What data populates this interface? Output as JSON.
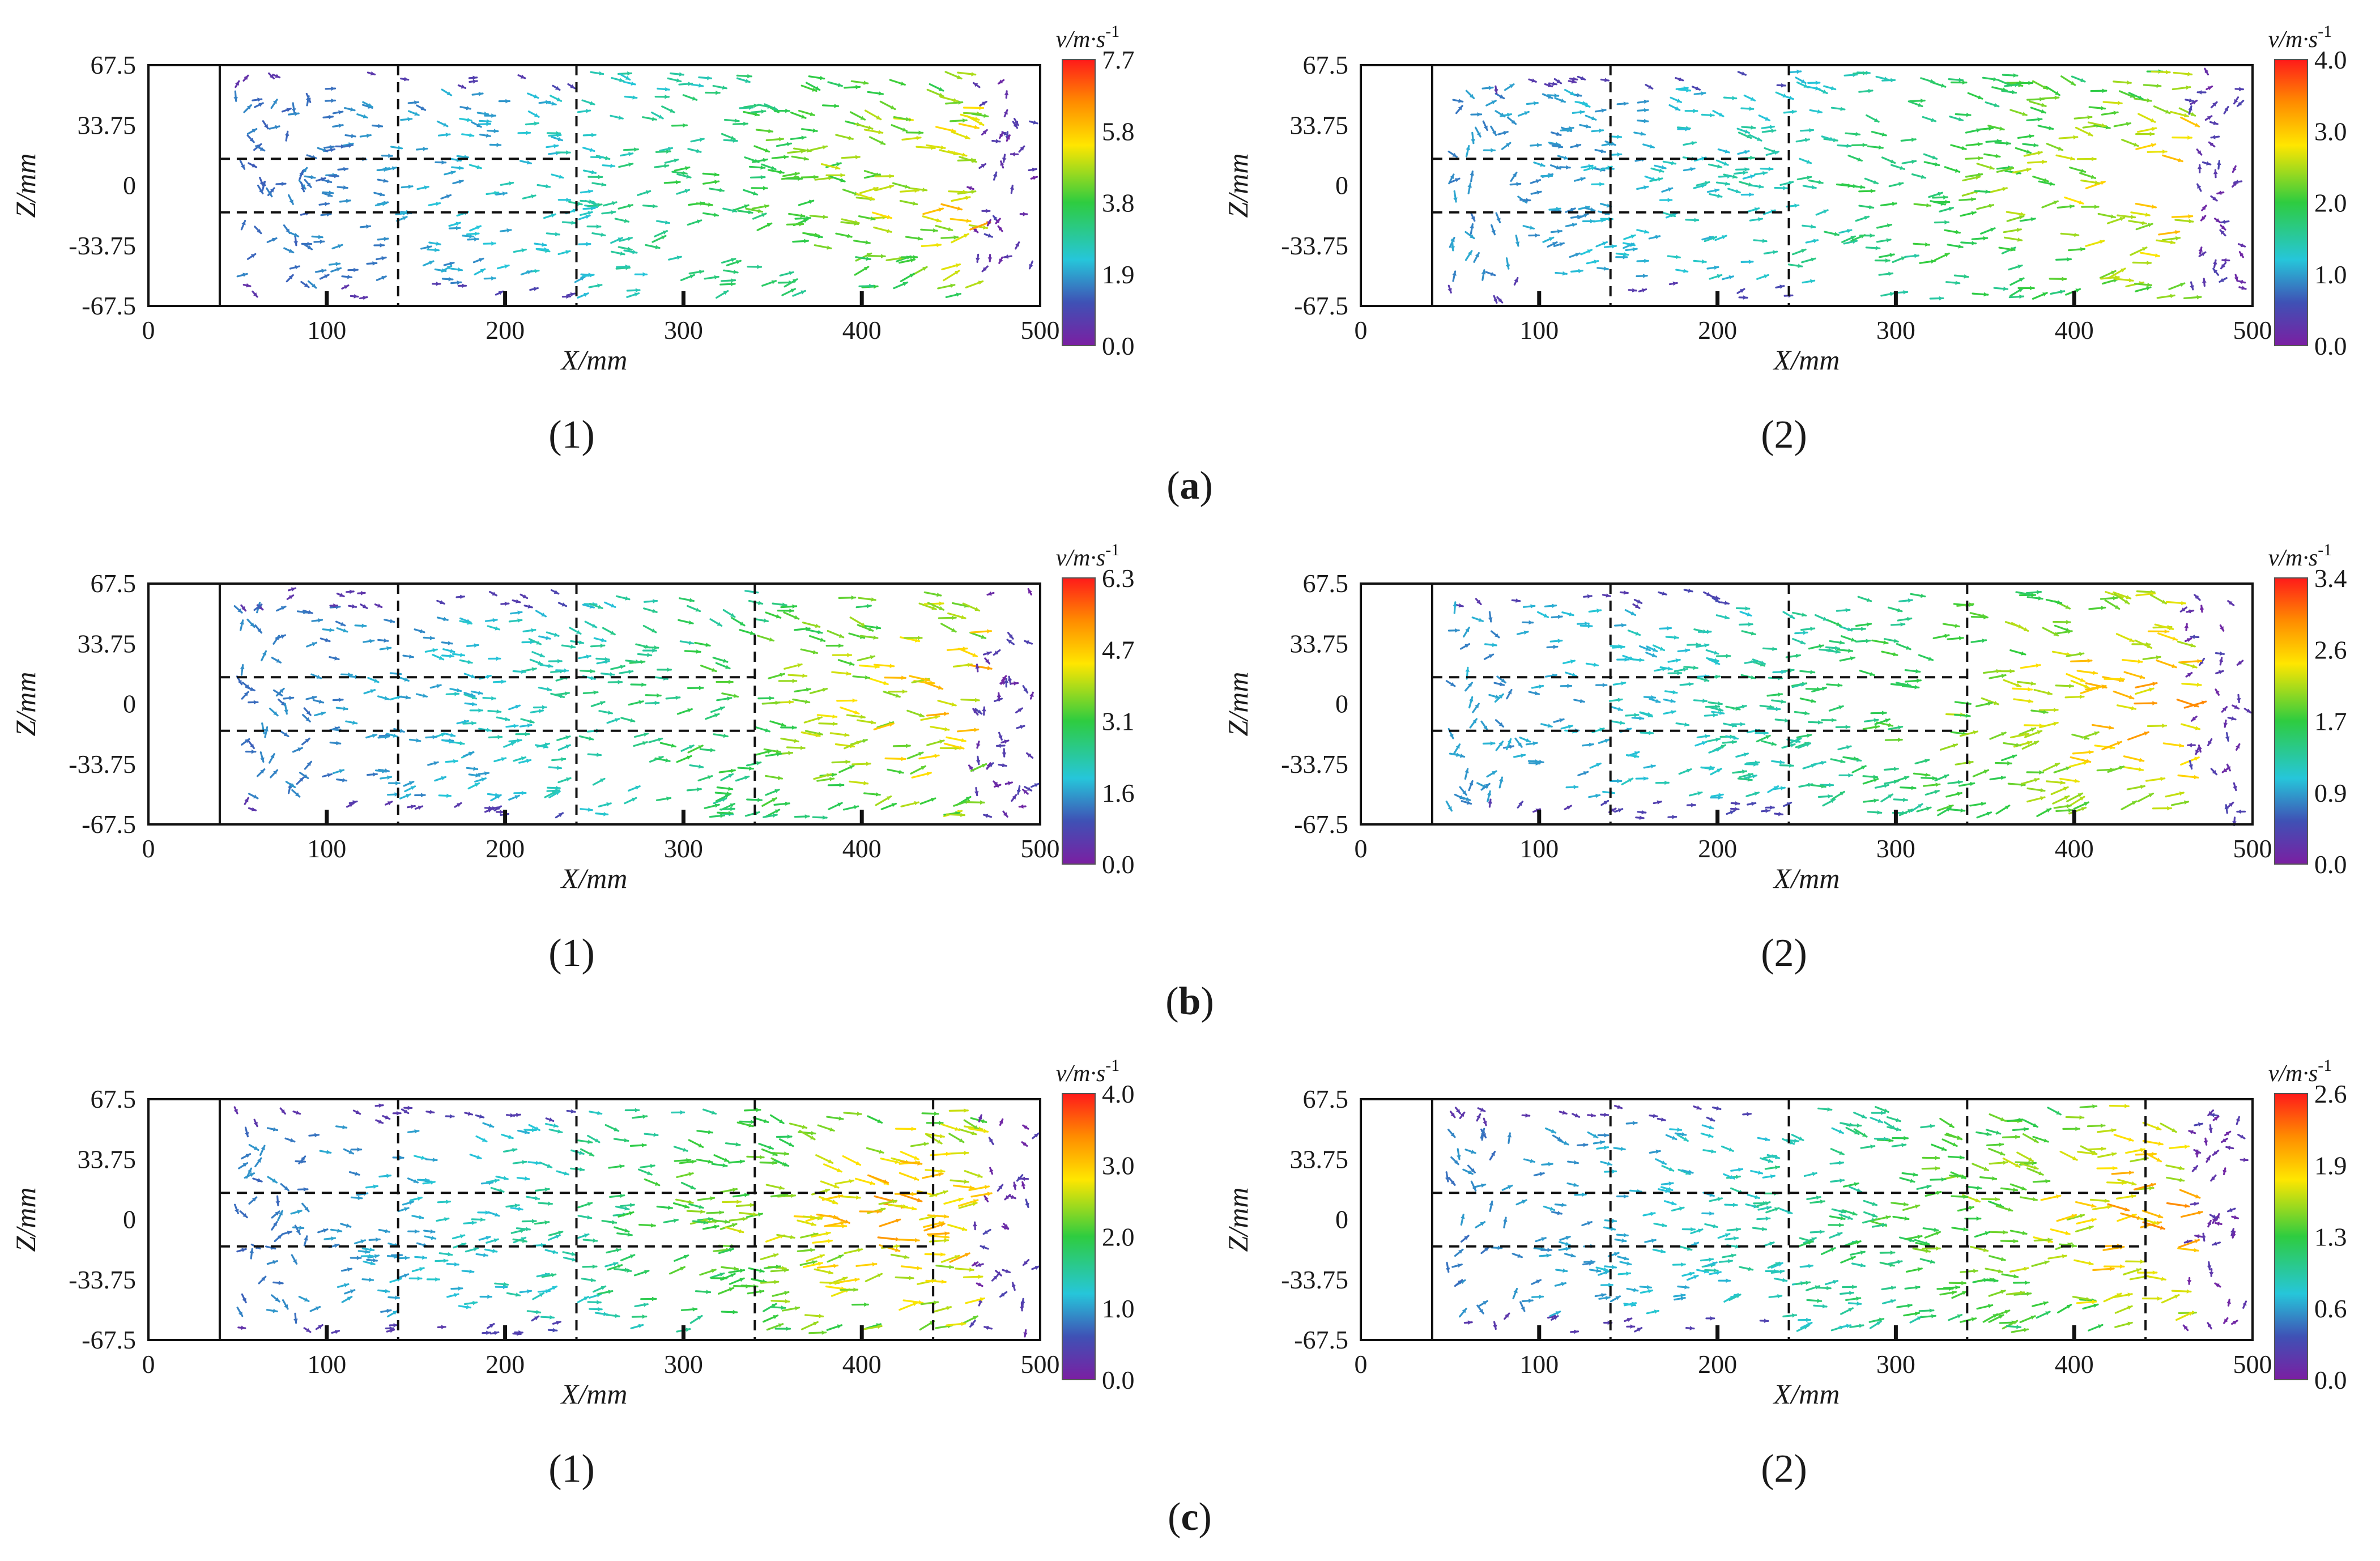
{
  "figure": {
    "groups": [
      {
        "id": "a",
        "label": "a",
        "panels": [
          {
            "id": "a1",
            "tag": "(1)",
            "xlabel": "X/mm",
            "ylabel": "Z/mm",
            "xticks": [
              "0",
              "100",
              "200",
              "300",
              "400",
              "500"
            ],
            "yticks": [
              "67.5",
              "33.75",
              "0",
              "-33.75",
              "-67.5"
            ],
            "cb_title": "v/m·s",
            "cb_sup": "-1",
            "cb_ticks": [
              "7.7",
              "5.8",
              "3.8",
              "1.9",
              "0.0"
            ],
            "vmax": 7.7,
            "vlines": [
              140,
              240
            ],
            "hsplit_to": 240,
            "flow": {
              "peak_x": 460,
              "inlet_v": 1.6
            }
          },
          {
            "id": "a2",
            "tag": "(2)",
            "xlabel": "X/mm",
            "ylabel": "Z/mm",
            "xticks": [
              "0",
              "100",
              "200",
              "300",
              "400",
              "500"
            ],
            "yticks": [
              "67.5",
              "33.75",
              "0",
              "-33.75",
              "-67.5"
            ],
            "cb_title": "v/m·s",
            "cb_sup": "-1",
            "cb_ticks": [
              "4.0",
              "3.0",
              "2.0",
              "1.0",
              "0.0"
            ],
            "vmax": 4.0,
            "vlines": [
              140,
              240
            ],
            "hsplit_to": 240,
            "flow": {
              "peak_x": 460,
              "inlet_v": 1.0
            }
          }
        ]
      },
      {
        "id": "b",
        "label": "b",
        "panels": [
          {
            "id": "b1",
            "tag": "(1)",
            "xlabel": "X/mm",
            "ylabel": "Z/mm",
            "xticks": [
              "0",
              "100",
              "200",
              "300",
              "400",
              "500"
            ],
            "yticks": [
              "67.5",
              "33.75",
              "0",
              "-33.75",
              "-67.5"
            ],
            "cb_title": "v/m·s",
            "cb_sup": "-1",
            "cb_ticks": [
              "6.3",
              "4.7",
              "3.1",
              "1.6",
              "0.0"
            ],
            "vmax": 6.3,
            "vlines": [
              140,
              240,
              340
            ],
            "hsplit_to": 340,
            "flow": {
              "peak_x": 440,
              "inlet_v": 1.4
            }
          },
          {
            "id": "b2",
            "tag": "(2)",
            "xlabel": "X/mm",
            "ylabel": "Z/mm",
            "xticks": [
              "0",
              "100",
              "200",
              "300",
              "400",
              "500"
            ],
            "yticks": [
              "67.5",
              "33.75",
              "0",
              "-33.75",
              "-67.5"
            ],
            "cb_title": "v/m·s",
            "cb_sup": "-1",
            "cb_ticks": [
              "3.4",
              "2.6",
              "1.7",
              "0.9",
              "0.0"
            ],
            "vmax": 3.4,
            "vlines": [
              140,
              240,
              340
            ],
            "hsplit_to": 340,
            "flow": {
              "peak_x": 420,
              "inlet_v": 0.9
            }
          }
        ]
      },
      {
        "id": "c",
        "label": "c",
        "panels": [
          {
            "id": "c1",
            "tag": "(1)",
            "xlabel": "X/mm",
            "ylabel": "Z/mm",
            "xticks": [
              "0",
              "100",
              "200",
              "300",
              "400",
              "500"
            ],
            "yticks": [
              "67.5",
              "33.75",
              "0",
              "-33.75",
              "-67.5"
            ],
            "cb_title": "v/m·s",
            "cb_sup": "-1",
            "cb_ticks": [
              "4.0",
              "3.0",
              "2.0",
              "1.0",
              "0.0"
            ],
            "vmax": 4.0,
            "vlines": [
              140,
              240,
              340,
              440
            ],
            "hsplit_to": 440,
            "flow": {
              "peak_x": 400,
              "inlet_v": 0.9
            }
          },
          {
            "id": "c2",
            "tag": "(2)",
            "xlabel": "X/mm",
            "ylabel": "Z/mm",
            "xticks": [
              "0",
              "100",
              "200",
              "300",
              "400",
              "500"
            ],
            "yticks": [
              "67.5",
              "33.75",
              "0",
              "-33.75",
              "-67.5"
            ],
            "cb_title": "v/m·s",
            "cb_sup": "-1",
            "cb_ticks": [
              "2.6",
              "1.9",
              "1.3",
              "0.6",
              "0.0"
            ],
            "vmax": 2.6,
            "vlines": [
              140,
              240,
              340,
              440
            ],
            "hsplit_to": 440,
            "flow": {
              "peak_x": 420,
              "inlet_v": 0.6
            }
          }
        ]
      }
    ]
  },
  "chart_data": [
    {
      "type": "vector-field",
      "panel": "a(1)",
      "xlabel": "X/mm",
      "ylabel": "Z/mm",
      "xlim": [
        0,
        500
      ],
      "ylim": [
        -67.5,
        67.5
      ],
      "colorbar": {
        "label": "v/m·s-1",
        "range": [
          0.0,
          7.7
        ],
        "ticks": [
          0.0,
          1.9,
          3.8,
          5.8,
          7.7
        ]
      }
    },
    {
      "type": "vector-field",
      "panel": "a(2)",
      "xlabel": "X/mm",
      "ylabel": "Z/mm",
      "xlim": [
        0,
        500
      ],
      "ylim": [
        -67.5,
        67.5
      ],
      "colorbar": {
        "label": "v/m·s-1",
        "range": [
          0.0,
          4.0
        ],
        "ticks": [
          0.0,
          1.0,
          2.0,
          3.0,
          4.0
        ]
      }
    },
    {
      "type": "vector-field",
      "panel": "b(1)",
      "xlabel": "X/mm",
      "ylabel": "Z/mm",
      "xlim": [
        0,
        500
      ],
      "ylim": [
        -67.5,
        67.5
      ],
      "colorbar": {
        "label": "v/m·s-1",
        "range": [
          0.0,
          6.3
        ],
        "ticks": [
          0.0,
          1.6,
          3.1,
          4.7,
          6.3
        ]
      }
    },
    {
      "type": "vector-field",
      "panel": "b(2)",
      "xlabel": "X/mm",
      "ylabel": "Z/mm",
      "xlim": [
        0,
        500
      ],
      "ylim": [
        -67.5,
        67.5
      ],
      "colorbar": {
        "label": "v/m·s-1",
        "range": [
          0.0,
          3.4
        ],
        "ticks": [
          0.0,
          0.9,
          1.7,
          2.6,
          3.4
        ]
      }
    },
    {
      "type": "vector-field",
      "panel": "c(1)",
      "xlabel": "X/mm",
      "ylabel": "Z/mm",
      "xlim": [
        0,
        500
      ],
      "ylim": [
        -67.5,
        67.5
      ],
      "colorbar": {
        "label": "v/m·s-1",
        "range": [
          0.0,
          4.0
        ],
        "ticks": [
          0.0,
          1.0,
          2.0,
          3.0,
          4.0
        ]
      }
    },
    {
      "type": "vector-field",
      "panel": "c(2)",
      "xlabel": "X/mm",
      "ylabel": "Z/mm",
      "xlim": [
        0,
        500
      ],
      "ylim": [
        -67.5,
        67.5
      ],
      "colorbar": {
        "label": "v/m·s-1",
        "range": [
          0.0,
          2.6
        ],
        "ticks": [
          0.0,
          0.6,
          1.3,
          1.9,
          2.6
        ]
      }
    }
  ]
}
